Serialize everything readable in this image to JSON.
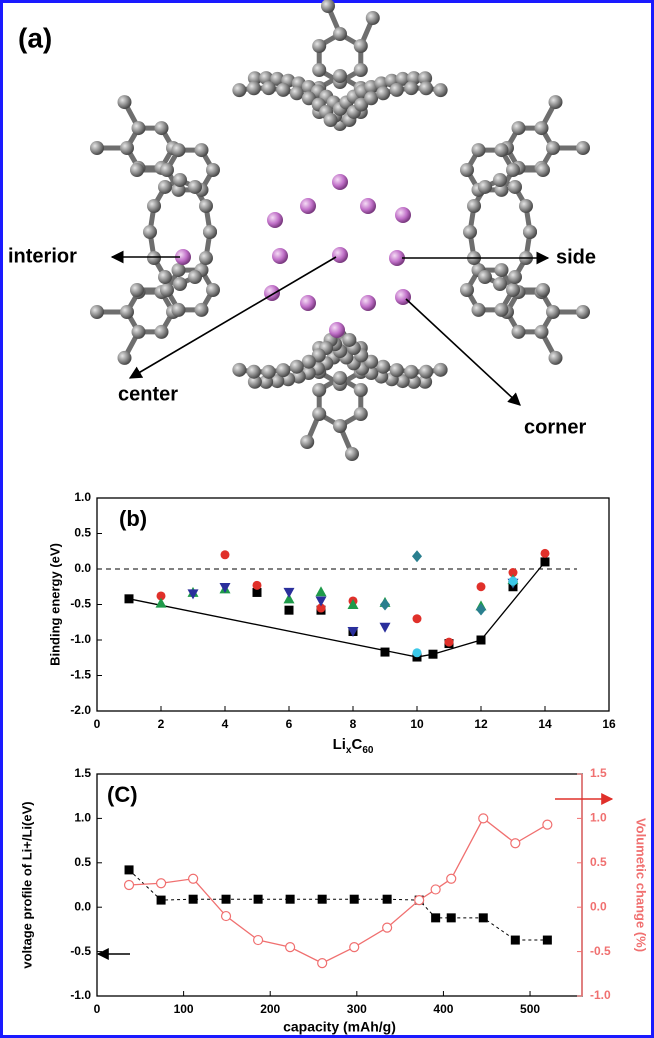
{
  "panel_a": {
    "label": "(a)",
    "sites": [
      "interior",
      "side",
      "center",
      "corner"
    ]
  },
  "chart_data": [
    {
      "type": "scatter",
      "label": "(b)",
      "ylabel": "Binding energy (eV)",
      "xlabel": [
        "Li",
        "x",
        "C",
        "60"
      ],
      "xlim": [
        0,
        16
      ],
      "xticks": [
        0,
        2,
        4,
        6,
        8,
        10,
        12,
        14,
        16
      ],
      "ylim": [
        -2,
        1
      ],
      "yticks": [
        {
          "value": -2,
          "label": "-2.0"
        },
        -1.5,
        {
          "value": -1,
          "label": "-1.0"
        },
        -0.5,
        {
          "value": 0,
          "label": "0.0"
        },
        0.5,
        {
          "value": 1,
          "label": "1.0"
        }
      ],
      "reference_line": {
        "y": 0,
        "x": [
          0,
          15
        ]
      },
      "series": [
        {
          "color": "#000000",
          "marker": "square",
          "line": true,
          "x": [
            1,
            10,
            10.5,
            12,
            14
          ],
          "values": [
            -0.42,
            -1.24,
            -1.2,
            -1.0,
            0.1
          ]
        },
        {
          "color": "#000000",
          "marker": "square",
          "x": [
            5,
            6,
            7,
            8,
            9,
            11,
            13
          ],
          "values": [
            -0.33,
            -0.58,
            -0.58,
            -0.88,
            -1.17,
            -1.05,
            -0.25
          ]
        },
        {
          "color": "#e0302a",
          "marker": "circle",
          "x": [
            2,
            4,
            5,
            7,
            8,
            10,
            11,
            12,
            13,
            14
          ],
          "values": [
            -0.38,
            0.2,
            -0.23,
            -0.55,
            -0.45,
            -0.7,
            -1.03,
            -0.25,
            -0.05,
            0.22
          ]
        },
        {
          "color": "#1f9a4a",
          "marker": "triangle-up",
          "x": [
            2,
            3,
            4,
            6,
            7,
            8,
            9,
            12,
            13
          ],
          "values": [
            -0.48,
            -0.33,
            -0.28,
            -0.42,
            -0.32,
            -0.5,
            -0.47,
            -0.52,
            -0.15
          ]
        },
        {
          "color": "#2a2f9c",
          "marker": "triangle-down",
          "x": [
            3,
            4,
            6,
            7,
            8,
            9,
            13
          ],
          "values": [
            -0.35,
            -0.26,
            -0.33,
            -0.45,
            -0.88,
            -0.82,
            -0.2
          ]
        },
        {
          "color": "#2a7f8f",
          "marker": "diamond",
          "x": [
            9,
            10,
            12,
            13
          ],
          "values": [
            -0.5,
            0.18,
            -0.57,
            -0.18
          ]
        },
        {
          "color": "#3cc8e8",
          "marker": "circle",
          "x": [
            10,
            13
          ],
          "values": [
            -1.18,
            -0.17
          ]
        }
      ]
    },
    {
      "type": "line",
      "label": "(C)",
      "xlabel": "capacity (mAh/g)",
      "ylabel": "voltage profile of Li+/Li(eV)",
      "y2label": "Volumetic change (%)",
      "xlim": [
        0,
        560
      ],
      "xticks": [
        0,
        100,
        200,
        300,
        400,
        500
      ],
      "ylim": [
        -1,
        1.5
      ],
      "yticks": [
        {
          "value": -1,
          "label": "-1.0"
        },
        -0.5,
        {
          "value": 0,
          "label": "0.0"
        },
        0.5,
        {
          "value": 1,
          "label": "1.0"
        },
        1.5
      ],
      "y2lim": [
        -1,
        1.5
      ],
      "y2ticks": [
        {
          "value": -1,
          "label": "-1.0"
        },
        -0.5,
        {
          "value": 0,
          "label": "0.0"
        },
        0.5,
        {
          "value": 1,
          "label": "1.0"
        },
        1.5
      ],
      "series": [
        {
          "color": "#000000",
          "marker": "square",
          "line": true,
          "dash": true,
          "x": [
            37,
            74,
            111,
            149,
            186,
            223,
            260,
            297,
            335,
            372,
            391,
            409,
            446,
            483,
            520
          ],
          "values": [
            0.42,
            0.08,
            0.09,
            0.09,
            0.09,
            0.09,
            0.09,
            0.09,
            0.09,
            0.08,
            -0.12,
            -0.12,
            -0.12,
            -0.37,
            -0.37
          ]
        },
        {
          "color": "#f07070",
          "marker": "open-circle",
          "line": true,
          "axis": "y2",
          "x": [
            37,
            74,
            111,
            149,
            186,
            223,
            260,
            297,
            335,
            372,
            391,
            409,
            446,
            483,
            520
          ],
          "values": [
            0.25,
            0.27,
            0.32,
            -0.1,
            -0.37,
            -0.45,
            -0.63,
            -0.45,
            -0.23,
            0.08,
            0.2,
            0.32,
            1.0,
            0.72,
            0.93
          ]
        }
      ]
    }
  ]
}
